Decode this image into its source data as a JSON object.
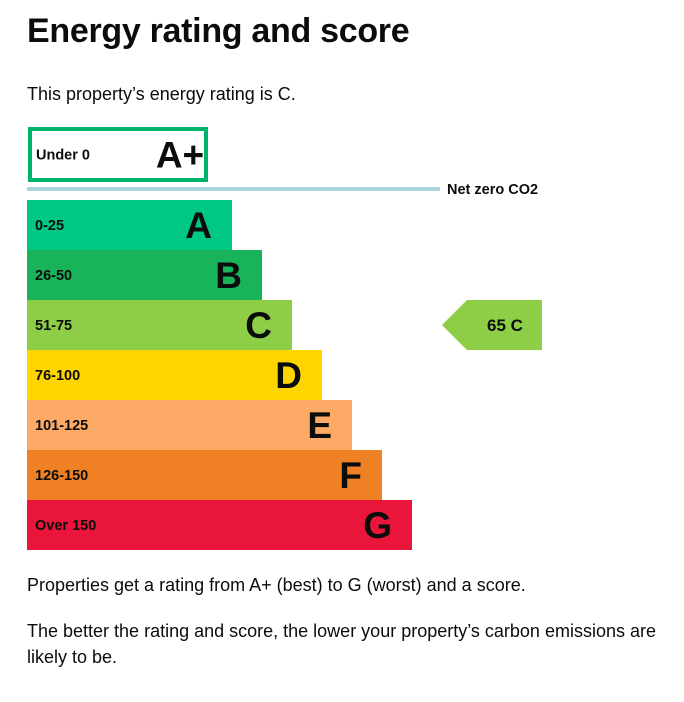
{
  "page": {
    "title": "Energy rating and score",
    "intro": "This property’s energy rating is C.",
    "footer_paragraphs": [
      "Properties get a rating from A+ (best) to G (worst) and a score.",
      "The better the rating and score, the lower your property’s carbon emissions are likely to be."
    ]
  },
  "chart_data": {
    "type": "bar",
    "bands": [
      {
        "letter": "A+",
        "range": "Under 0",
        "color": "#ffffff",
        "border": "#00b36b",
        "outlined": true
      },
      {
        "letter": "A",
        "range": "0-25",
        "color": "#00c781"
      },
      {
        "letter": "B",
        "range": "26-50",
        "color": "#19b459"
      },
      {
        "letter": "C",
        "range": "51-75",
        "color": "#8dce46"
      },
      {
        "letter": "D",
        "range": "76-100",
        "color": "#ffd500"
      },
      {
        "letter": "E",
        "range": "101-125",
        "color": "#fcaa65"
      },
      {
        "letter": "F",
        "range": "126-150",
        "color": "#ef8023"
      },
      {
        "letter": "G",
        "range": "Over 150",
        "color": "#e9153b"
      }
    ],
    "net_zero": {
      "label": "Net zero CO2",
      "color": "#a9d6de",
      "after_band": "A+"
    },
    "current": {
      "score": 65,
      "letter": "C",
      "text": "65  C",
      "color": "#8dce46"
    }
  }
}
